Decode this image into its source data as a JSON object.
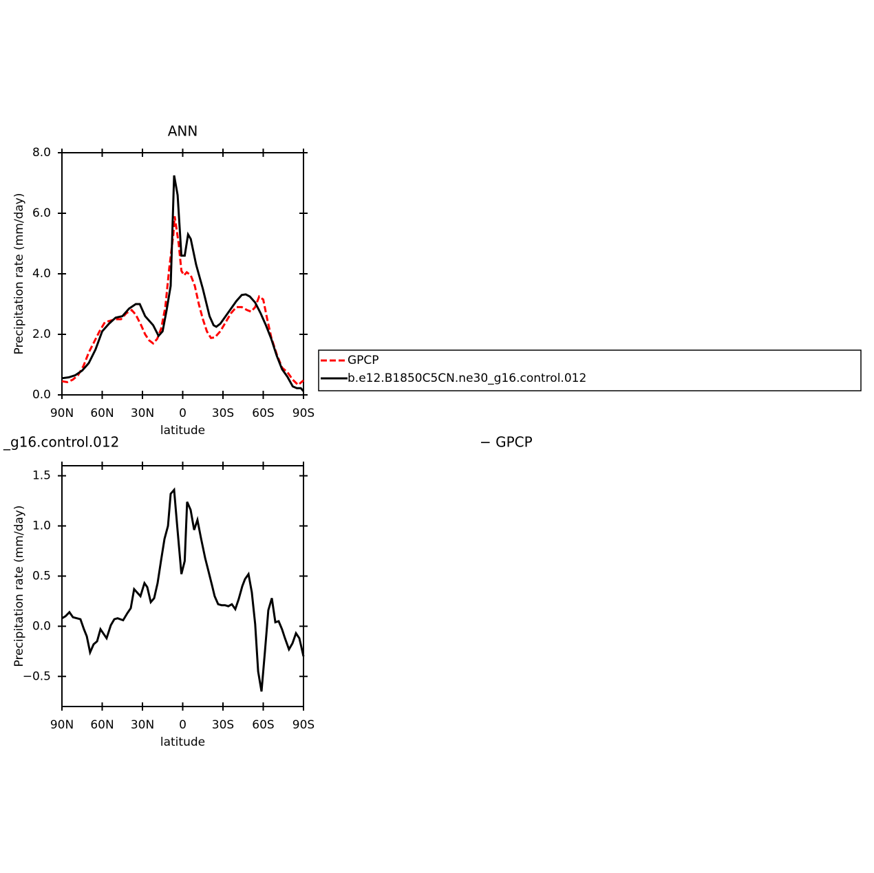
{
  "chart_data": [
    {
      "type": "line",
      "title": "ANN",
      "ylabel": "Precipitation rate (mm/day)",
      "xlabel": "latitude",
      "xlim": [
        90,
        -90
      ],
      "xticks": [
        {
          "value": 90,
          "label": "90N"
        },
        {
          "value": 60,
          "label": "60N"
        },
        {
          "value": 30,
          "label": "30N"
        },
        0,
        {
          "value": -30,
          "label": "30S"
        },
        {
          "value": -60,
          "label": "60S"
        },
        {
          "value": -90,
          "label": "90S"
        }
      ],
      "ylim": [
        0,
        8
      ],
      "yticks": [
        {
          "value": 0,
          "label": "0.0"
        },
        {
          "value": 2,
          "label": "2.0"
        },
        {
          "value": 4,
          "label": "4.0"
        },
        {
          "value": 6,
          "label": "6.0"
        },
        {
          "value": 8,
          "label": "8.0"
        }
      ],
      "legend_position": "outside-right",
      "series": [
        {
          "name": "GPCP",
          "color": "#ff0000",
          "dashed": true,
          "x": [
            90,
            86,
            82,
            78,
            74,
            70,
            66,
            62,
            58,
            54,
            50,
            46,
            42,
            38,
            35,
            31,
            28,
            25,
            22,
            19,
            16,
            13,
            10,
            7,
            6,
            3,
            1,
            -1,
            -3,
            -6,
            -9,
            -12,
            -15,
            -18,
            -21,
            -24,
            -28,
            -32,
            -36,
            -40,
            -44,
            -48,
            -51,
            -54,
            -57,
            -60,
            -63,
            -66,
            -70,
            -74,
            -78,
            -82,
            -86,
            -90
          ],
          "values": [
            0.45,
            0.42,
            0.5,
            0.65,
            0.95,
            1.4,
            1.75,
            2.1,
            2.4,
            2.45,
            2.5,
            2.5,
            2.7,
            2.8,
            2.65,
            2.3,
            2.0,
            1.8,
            1.7,
            1.85,
            2.2,
            2.9,
            4.2,
            5.3,
            5.9,
            5.0,
            4.1,
            3.95,
            4.05,
            3.95,
            3.6,
            3.0,
            2.5,
            2.1,
            1.88,
            1.9,
            2.1,
            2.4,
            2.7,
            2.9,
            2.9,
            2.8,
            2.75,
            2.9,
            3.25,
            3.15,
            2.5,
            1.9,
            1.35,
            0.9,
            0.75,
            0.5,
            0.33,
            0.48
          ]
        },
        {
          "name": "b.e12.B1850C5CN.ne30_g16.control.012",
          "color": "#000000",
          "dashed": false,
          "x": [
            90,
            85,
            80,
            75,
            70,
            65,
            60,
            55,
            50,
            45,
            40,
            35,
            32,
            28,
            25,
            22,
            18,
            15,
            12,
            9,
            6.4,
            3.8,
            1,
            -1.5,
            -4,
            -6,
            -10,
            -15,
            -20,
            -23,
            -25,
            -28,
            -32,
            -36,
            -40,
            -44,
            -47,
            -50,
            -54,
            -58,
            -62,
            -66,
            -70,
            -74,
            -78,
            -82,
            -85,
            -88,
            -90
          ],
          "values": [
            0.55,
            0.58,
            0.65,
            0.8,
            1.05,
            1.5,
            2.1,
            2.35,
            2.55,
            2.6,
            2.85,
            3.0,
            3.0,
            2.6,
            2.45,
            2.3,
            1.95,
            2.1,
            2.8,
            3.6,
            7.25,
            6.6,
            4.6,
            4.6,
            5.3,
            5.15,
            4.3,
            3.5,
            2.6,
            2.3,
            2.25,
            2.35,
            2.6,
            2.85,
            3.1,
            3.3,
            3.32,
            3.25,
            3.05,
            2.7,
            2.3,
            1.85,
            1.3,
            0.85,
            0.6,
            0.28,
            0.22,
            0.22,
            0.12
          ]
        }
      ]
    },
    {
      "type": "line",
      "left_title": "_g16.control.012",
      "right_title": "− GPCP",
      "ylabel": "Precipitation rate (mm/day)",
      "xlabel": "latitude",
      "xlim": [
        90,
        -90
      ],
      "xticks": [
        {
          "value": 90,
          "label": "90N"
        },
        {
          "value": 60,
          "label": "60N"
        },
        {
          "value": 30,
          "label": "30N"
        },
        0,
        {
          "value": -30,
          "label": "30S"
        },
        {
          "value": -60,
          "label": "60S"
        },
        {
          "value": -90,
          "label": "90S"
        }
      ],
      "ylim": [
        -0.8,
        1.6
      ],
      "yticks": [
        {
          "value": -0.5,
          "label": "−0.5"
        },
        {
          "value": 0,
          "label": "0.0"
        },
        0.5,
        {
          "value": 1,
          "label": "1.0"
        },
        1.5
      ],
      "series": [
        {
          "color": "#000000",
          "dashed": false,
          "x": [
            90,
            87.4,
            84.4,
            81.8,
            76.2,
            73.6,
            71.5,
            69,
            66.4,
            63.8,
            61.3,
            56.7,
            53.6,
            51,
            48.5,
            44.4,
            41.3,
            38.7,
            36.2,
            31.5,
            28.5,
            26.4,
            23.8,
            21.3,
            18.7,
            16.2,
            13.6,
            11,
            9,
            6.4,
            3.8,
            1,
            -1.5,
            -3.3,
            -5.9,
            -8.5,
            -11,
            -13.6,
            -16.7,
            -19.2,
            -21.8,
            -23.8,
            -26.4,
            -29,
            -31.5,
            -34,
            -36.6,
            -39.2,
            -41.7,
            -44.4,
            -46.4,
            -49,
            -51.5,
            -54,
            -56.2,
            -58.7,
            -61.3,
            -63.8,
            -66.4,
            -69,
            -71.5,
            -74,
            -76.2,
            -79.2,
            -81.8,
            -84.4,
            -86.9,
            -90
          ],
          "values": [
            0.08,
            0.1,
            0.14,
            0.09,
            0.07,
            -0.03,
            -0.1,
            -0.26,
            -0.18,
            -0.15,
            -0.03,
            -0.12,
            0.01,
            0.07,
            0.08,
            0.06,
            0.13,
            0.18,
            0.37,
            0.3,
            0.43,
            0.39,
            0.24,
            0.28,
            0.43,
            0.65,
            0.87,
            1.0,
            1.32,
            1.36,
            0.95,
            0.52,
            0.65,
            1.24,
            1.16,
            0.96,
            1.06,
            0.88,
            0.68,
            0.55,
            0.41,
            0.3,
            0.22,
            0.21,
            0.21,
            0.2,
            0.22,
            0.17,
            0.27,
            0.4,
            0.47,
            0.52,
            0.34,
            0.02,
            -0.45,
            -0.65,
            -0.25,
            0.16,
            0.28,
            0.04,
            0.05,
            -0.03,
            -0.12,
            -0.23,
            -0.17,
            -0.07,
            -0.12,
            -0.3
          ]
        }
      ]
    }
  ]
}
